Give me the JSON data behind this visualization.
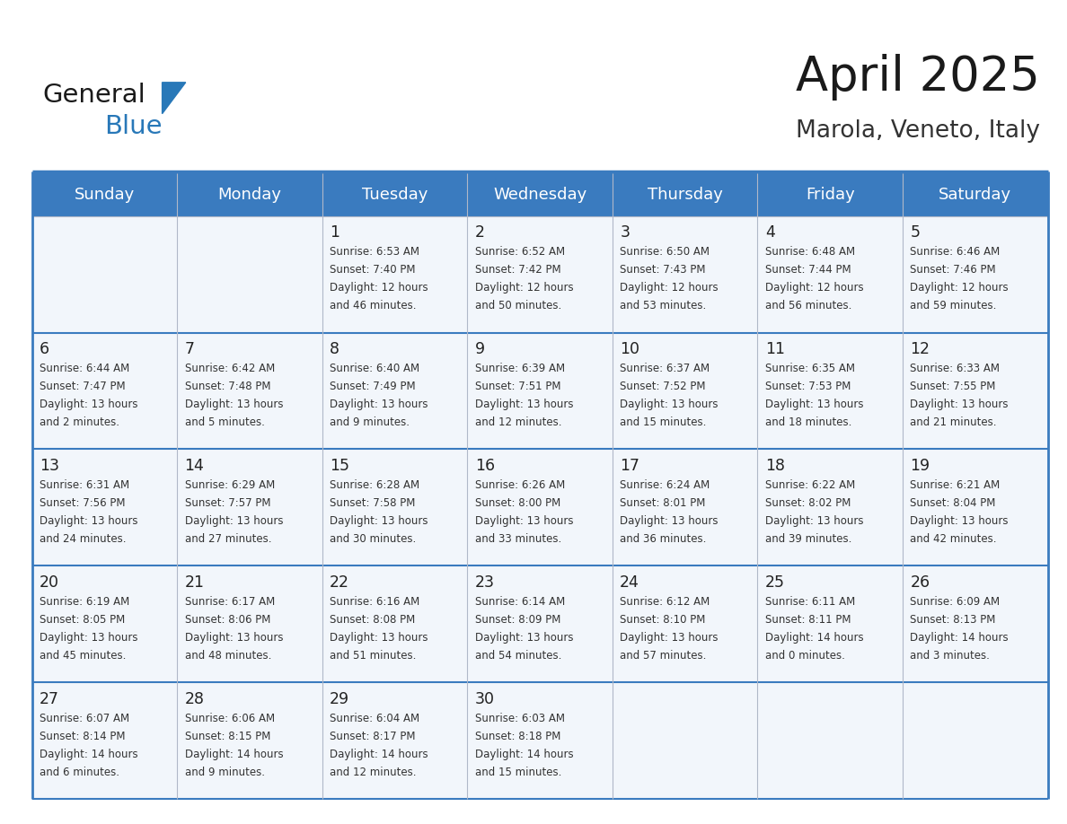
{
  "title": "April 2025",
  "subtitle": "Marola, Veneto, Italy",
  "header_bg": "#3a7bbf",
  "header_text_color": "#ffffff",
  "grid_line_color": "#3a7bbf",
  "row_separator_color": "#3a7bbf",
  "col_separator_color": "#b0b8c8",
  "cell_bg": "#f2f6fb",
  "day_names": [
    "Sunday",
    "Monday",
    "Tuesday",
    "Wednesday",
    "Thursday",
    "Friday",
    "Saturday"
  ],
  "days": [
    {
      "day": 1,
      "col": 2,
      "row": 0,
      "sunrise": "6:53 AM",
      "sunset": "7:40 PM",
      "daylight": "12 hours and 46 minutes."
    },
    {
      "day": 2,
      "col": 3,
      "row": 0,
      "sunrise": "6:52 AM",
      "sunset": "7:42 PM",
      "daylight": "12 hours and 50 minutes."
    },
    {
      "day": 3,
      "col": 4,
      "row": 0,
      "sunrise": "6:50 AM",
      "sunset": "7:43 PM",
      "daylight": "12 hours and 53 minutes."
    },
    {
      "day": 4,
      "col": 5,
      "row": 0,
      "sunrise": "6:48 AM",
      "sunset": "7:44 PM",
      "daylight": "12 hours and 56 minutes."
    },
    {
      "day": 5,
      "col": 6,
      "row": 0,
      "sunrise": "6:46 AM",
      "sunset": "7:46 PM",
      "daylight": "12 hours and 59 minutes."
    },
    {
      "day": 6,
      "col": 0,
      "row": 1,
      "sunrise": "6:44 AM",
      "sunset": "7:47 PM",
      "daylight": "13 hours and 2 minutes."
    },
    {
      "day": 7,
      "col": 1,
      "row": 1,
      "sunrise": "6:42 AM",
      "sunset": "7:48 PM",
      "daylight": "13 hours and 5 minutes."
    },
    {
      "day": 8,
      "col": 2,
      "row": 1,
      "sunrise": "6:40 AM",
      "sunset": "7:49 PM",
      "daylight": "13 hours and 9 minutes."
    },
    {
      "day": 9,
      "col": 3,
      "row": 1,
      "sunrise": "6:39 AM",
      "sunset": "7:51 PM",
      "daylight": "13 hours and 12 minutes."
    },
    {
      "day": 10,
      "col": 4,
      "row": 1,
      "sunrise": "6:37 AM",
      "sunset": "7:52 PM",
      "daylight": "13 hours and 15 minutes."
    },
    {
      "day": 11,
      "col": 5,
      "row": 1,
      "sunrise": "6:35 AM",
      "sunset": "7:53 PM",
      "daylight": "13 hours and 18 minutes."
    },
    {
      "day": 12,
      "col": 6,
      "row": 1,
      "sunrise": "6:33 AM",
      "sunset": "7:55 PM",
      "daylight": "13 hours and 21 minutes."
    },
    {
      "day": 13,
      "col": 0,
      "row": 2,
      "sunrise": "6:31 AM",
      "sunset": "7:56 PM",
      "daylight": "13 hours and 24 minutes."
    },
    {
      "day": 14,
      "col": 1,
      "row": 2,
      "sunrise": "6:29 AM",
      "sunset": "7:57 PM",
      "daylight": "13 hours and 27 minutes."
    },
    {
      "day": 15,
      "col": 2,
      "row": 2,
      "sunrise": "6:28 AM",
      "sunset": "7:58 PM",
      "daylight": "13 hours and 30 minutes."
    },
    {
      "day": 16,
      "col": 3,
      "row": 2,
      "sunrise": "6:26 AM",
      "sunset": "8:00 PM",
      "daylight": "13 hours and 33 minutes."
    },
    {
      "day": 17,
      "col": 4,
      "row": 2,
      "sunrise": "6:24 AM",
      "sunset": "8:01 PM",
      "daylight": "13 hours and 36 minutes."
    },
    {
      "day": 18,
      "col": 5,
      "row": 2,
      "sunrise": "6:22 AM",
      "sunset": "8:02 PM",
      "daylight": "13 hours and 39 minutes."
    },
    {
      "day": 19,
      "col": 6,
      "row": 2,
      "sunrise": "6:21 AM",
      "sunset": "8:04 PM",
      "daylight": "13 hours and 42 minutes."
    },
    {
      "day": 20,
      "col": 0,
      "row": 3,
      "sunrise": "6:19 AM",
      "sunset": "8:05 PM",
      "daylight": "13 hours and 45 minutes."
    },
    {
      "day": 21,
      "col": 1,
      "row": 3,
      "sunrise": "6:17 AM",
      "sunset": "8:06 PM",
      "daylight": "13 hours and 48 minutes."
    },
    {
      "day": 22,
      "col": 2,
      "row": 3,
      "sunrise": "6:16 AM",
      "sunset": "8:08 PM",
      "daylight": "13 hours and 51 minutes."
    },
    {
      "day": 23,
      "col": 3,
      "row": 3,
      "sunrise": "6:14 AM",
      "sunset": "8:09 PM",
      "daylight": "13 hours and 54 minutes."
    },
    {
      "day": 24,
      "col": 4,
      "row": 3,
      "sunrise": "6:12 AM",
      "sunset": "8:10 PM",
      "daylight": "13 hours and 57 minutes."
    },
    {
      "day": 25,
      "col": 5,
      "row": 3,
      "sunrise": "6:11 AM",
      "sunset": "8:11 PM",
      "daylight": "14 hours and 0 minutes."
    },
    {
      "day": 26,
      "col": 6,
      "row": 3,
      "sunrise": "6:09 AM",
      "sunset": "8:13 PM",
      "daylight": "14 hours and 3 minutes."
    },
    {
      "day": 27,
      "col": 0,
      "row": 4,
      "sunrise": "6:07 AM",
      "sunset": "8:14 PM",
      "daylight": "14 hours and 6 minutes."
    },
    {
      "day": 28,
      "col": 1,
      "row": 4,
      "sunrise": "6:06 AM",
      "sunset": "8:15 PM",
      "daylight": "14 hours and 9 minutes."
    },
    {
      "day": 29,
      "col": 2,
      "row": 4,
      "sunrise": "6:04 AM",
      "sunset": "8:17 PM",
      "daylight": "14 hours and 12 minutes."
    },
    {
      "day": 30,
      "col": 3,
      "row": 4,
      "sunrise": "6:03 AM",
      "sunset": "8:18 PM",
      "daylight": "14 hours and 15 minutes."
    }
  ],
  "fig_width": 11.88,
  "fig_height": 9.18,
  "dpi": 100
}
